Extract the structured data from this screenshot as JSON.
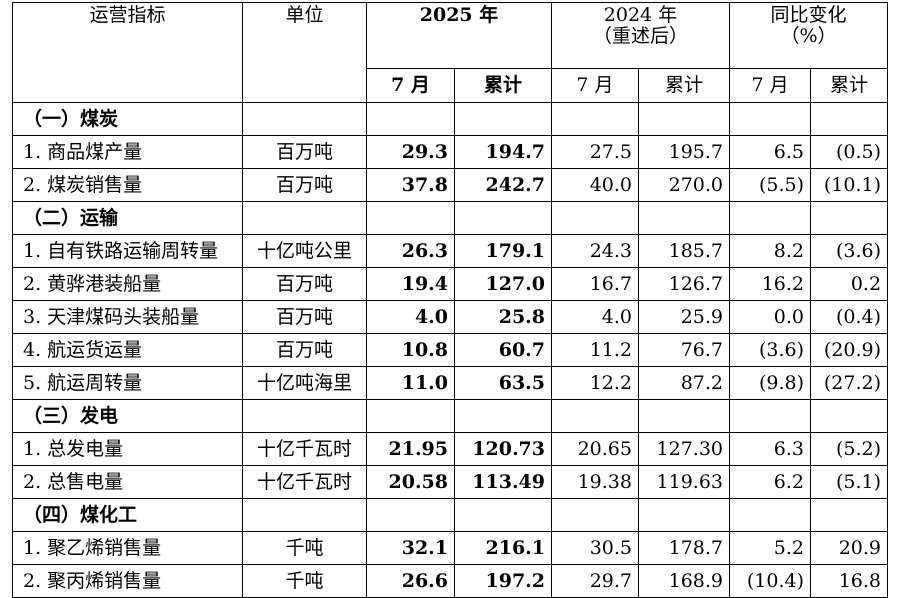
{
  "header": {
    "indicator": "运营指标",
    "unit": "单位",
    "y2025": "2025 年",
    "y2024": "2024 年",
    "y2024_sub": "（重述后）",
    "yoy": "同比变化",
    "yoy_sub": "（%）",
    "month": "7 月",
    "cumulative": "累计"
  },
  "sections": [
    {
      "title": "（一）煤炭",
      "rows": [
        {
          "name": "1. 商品煤产量",
          "unit": "百万吨",
          "m2025": "29.3",
          "c2025": "194.7",
          "m2024": "27.5",
          "c2024": "195.7",
          "myoy": "6.5",
          "cyoy": "(0.5)"
        },
        {
          "name": "2. 煤炭销售量",
          "unit": "百万吨",
          "m2025": "37.8",
          "c2025": "242.7",
          "m2024": "40.0",
          "c2024": "270.0",
          "myoy": "(5.5)",
          "cyoy": "(10.1)"
        }
      ]
    },
    {
      "title": "（二）运输",
      "rows": [
        {
          "name": "1. 自有铁路运输周转量",
          "unit": "十亿吨公里",
          "m2025": "26.3",
          "c2025": "179.1",
          "m2024": "24.3",
          "c2024": "185.7",
          "myoy": "8.2",
          "cyoy": "(3.6)"
        },
        {
          "name": "2. 黄骅港装船量",
          "unit": "百万吨",
          "m2025": "19.4",
          "c2025": "127.0",
          "m2024": "16.7",
          "c2024": "126.7",
          "myoy": "16.2",
          "cyoy": "0.2"
        },
        {
          "name": "3. 天津煤码头装船量",
          "unit": "百万吨",
          "m2025": "4.0",
          "c2025": "25.8",
          "m2024": "4.0",
          "c2024": "25.9",
          "myoy": "0.0",
          "cyoy": "(0.4)"
        },
        {
          "name": "4. 航运货运量",
          "unit": "百万吨",
          "m2025": "10.8",
          "c2025": "60.7",
          "m2024": "11.2",
          "c2024": "76.7",
          "myoy": "(3.6)",
          "cyoy": "(20.9)"
        },
        {
          "name": "5. 航运周转量",
          "unit": "十亿吨海里",
          "m2025": "11.0",
          "c2025": "63.5",
          "m2024": "12.2",
          "c2024": "87.2",
          "myoy": "(9.8)",
          "cyoy": "(27.2)"
        }
      ]
    },
    {
      "title": "（三）发电",
      "rows": [
        {
          "name": "1. 总发电量",
          "unit": "十亿千瓦时",
          "m2025": "21.95",
          "c2025": "120.73",
          "m2024": "20.65",
          "c2024": "127.30",
          "myoy": "6.3",
          "cyoy": "(5.2)"
        },
        {
          "name": "2. 总售电量",
          "unit": "十亿千瓦时",
          "m2025": "20.58",
          "c2025": "113.49",
          "m2024": "19.38",
          "c2024": "119.63",
          "myoy": "6.2",
          "cyoy": "(5.1)"
        }
      ]
    },
    {
      "title": "（四）煤化工",
      "rows": [
        {
          "name": "1. 聚乙烯销售量",
          "unit": "千吨",
          "m2025": "32.1",
          "c2025": "216.1",
          "m2024": "30.5",
          "c2024": "178.7",
          "myoy": "5.2",
          "cyoy": "20.9"
        },
        {
          "name": "2. 聚丙烯销售量",
          "unit": "千吨",
          "m2025": "26.6",
          "c2025": "197.2",
          "m2024": "29.7",
          "c2024": "168.9",
          "myoy": "(10.4)",
          "cyoy": "16.8"
        }
      ]
    }
  ]
}
